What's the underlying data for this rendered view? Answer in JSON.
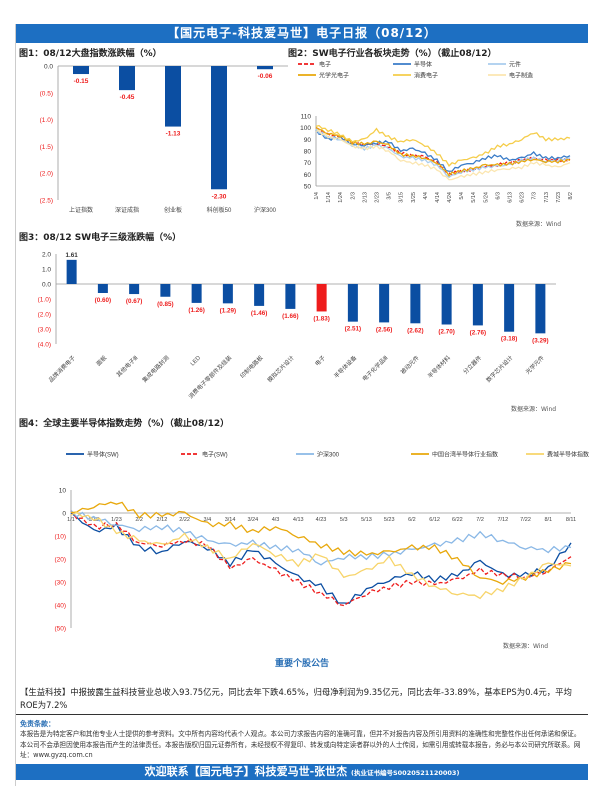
{
  "header": {
    "title": "【国元电子-科技爱马世】电子日报（08/12）"
  },
  "colors": {
    "blue": "#0b4ea2",
    "red": "#ee1c1c",
    "header": "#1d6fc2"
  },
  "source_label": "数据来源：Wind",
  "important_title": "重要个股公告",
  "announcement": "【生益科技】中报披露生益科技营业总收入93.75亿元，同比去年下跌4.65%，归母净利润为9.35亿元，同比去年-33.89%，基本EPS为0.4元，平均ROE为7.2%",
  "disclaimer": {
    "title": "免责条款：",
    "text": "本报告是为特定客户和其他专业人士提供的参考资料。文中所有内容均代表个人观点。本公司力求报告内容的准确可靠，但并不对报告内容及所引用资料的准确性和完整性作出任何承诺和保证。本公司不会承担因使用本报告而产生的法律责任。本报告版权归国元证券所有，未经授权不得复印、转发或向特定读者群以外的人士传阅，如需引用或转载本报告，务必与本公司研究所联系。网址：www.gyzq.com.cn"
  },
  "footer": {
    "text": "欢迎联系【国元电子】科技爱马世-张世杰",
    "license": "(执业证书编号S0020521120003)"
  },
  "chart_data": [
    {
      "type": "bar",
      "title": "图1：08/12大盘指数涨跌幅（%）",
      "categories": [
        "上证指数",
        "深证成指",
        "创业板",
        "科创板50",
        "沪深300"
      ],
      "values": [
        -0.15,
        -0.45,
        -1.13,
        -2.3,
        -0.06
      ],
      "labels": [
        "-0.15",
        "-0.45",
        "-1.13",
        "-2.30",
        "-0.06"
      ],
      "ylim": [
        -2.5,
        0
      ],
      "yticks": [
        "0.0",
        "(0.5)",
        "(1.0)",
        "(1.5)",
        "(2.0)",
        "(2.5)"
      ]
    },
    {
      "type": "line",
      "title": "图2：SW电子行业各板块走势（%）（截止08/12）",
      "x": [
        "1/4",
        "1/14",
        "1/24",
        "2/3",
        "2/13",
        "2/23",
        "3/5",
        "3/15",
        "3/25",
        "4/4",
        "4/14",
        "4/24",
        "5/4",
        "5/14",
        "5/24",
        "6/3",
        "6/13",
        "6/23",
        "7/3",
        "7/13",
        "7/23",
        "8/2"
      ],
      "ylim": [
        50,
        110
      ],
      "yticks": [
        "50",
        "60",
        "70",
        "80",
        "90",
        "100",
        "110"
      ],
      "series": [
        {
          "name": "电子",
          "color": "#ee1c1c",
          "dash": true,
          "values": [
            100,
            94,
            92,
            86,
            86,
            86,
            84,
            78,
            76,
            75,
            70,
            60,
            63,
            64,
            67,
            68,
            70,
            72,
            74,
            72,
            72,
            73
          ]
        },
        {
          "name": "半导体",
          "color": "#3a7cc8",
          "values": [
            97,
            90,
            92,
            86,
            85,
            87,
            88,
            80,
            82,
            78,
            72,
            62,
            68,
            70,
            74,
            76,
            72,
            74,
            78,
            74,
            74,
            76
          ]
        },
        {
          "name": "元件",
          "color": "#a9cdee",
          "values": [
            98,
            92,
            90,
            85,
            82,
            85,
            82,
            75,
            74,
            72,
            68,
            58,
            62,
            64,
            66,
            67,
            68,
            72,
            74,
            71,
            72,
            74
          ]
        },
        {
          "name": "光学光电子",
          "color": "#e8a80c",
          "values": [
            100,
            95,
            93,
            87,
            86,
            88,
            85,
            77,
            76,
            74,
            70,
            60,
            63,
            65,
            68,
            68,
            69,
            71,
            73,
            71,
            71,
            72
          ]
        },
        {
          "name": "消费电子",
          "color": "#f5cd4a",
          "values": [
            102,
            98,
            94,
            88,
            90,
            98,
            92,
            88,
            90,
            85,
            78,
            68,
            72,
            74,
            78,
            84,
            86,
            90,
            96,
            90,
            90,
            91
          ]
        },
        {
          "name": "电子制造",
          "color": "#fbe6b0",
          "values": [
            98,
            92,
            90,
            84,
            82,
            84,
            80,
            72,
            70,
            68,
            64,
            55,
            58,
            60,
            62,
            64,
            65,
            66,
            70,
            68,
            66,
            70
          ]
        }
      ]
    },
    {
      "type": "bar",
      "title": "图3：08/12 SW电子三级涨跌幅（%）",
      "categories": [
        "品牌消费电子",
        "面板",
        "其他电子Ⅲ",
        "集成电路封测",
        "LED",
        "消费电子零部件及组装",
        "印制电路板",
        "模拟芯片设计",
        "电子",
        "半导体设备",
        "电子化学品Ⅲ",
        "被动元件",
        "半导体材料",
        "分立器件",
        "数字芯片设计",
        "光学元件"
      ],
      "values": [
        1.61,
        -0.6,
        -0.67,
        -0.85,
        -1.26,
        -1.29,
        -1.46,
        -1.66,
        -1.83,
        -2.51,
        -2.56,
        -2.62,
        -2.7,
        -2.76,
        -3.18,
        -3.29
      ],
      "labels": [
        "1.61",
        "(0.60)",
        "(0.67)",
        "(0.85)",
        "(1.26)",
        "(1.29)",
        "(1.46)",
        "(1.66)",
        "(1.83)",
        "(2.51)",
        "(2.56)",
        "(2.62)",
        "(2.70)",
        "(2.76)",
        "(3.18)",
        "(3.29)"
      ],
      "highlight": "电子",
      "ylim": [
        -4,
        2
      ],
      "yticks": [
        "(4.0)",
        "(3.0)",
        "(2.0)",
        "(1.0)",
        "0.0",
        "1.0",
        "2.0"
      ]
    },
    {
      "type": "line",
      "title": "图4：全球主要半导体指数走势（%）（截止08/12）",
      "x": [
        "1/1",
        "1/13",
        "1/23",
        "2/2",
        "2/12",
        "2/22",
        "3/4",
        "3/14",
        "3/24",
        "4/3",
        "4/13",
        "4/23",
        "5/3",
        "5/13",
        "5/23",
        "6/2",
        "6/12",
        "6/22",
        "7/2",
        "7/12",
        "7/22",
        "8/1",
        "8/11"
      ],
      "ylim": [
        -50,
        10
      ],
      "yticks": [
        "(50)",
        "(40)",
        "(30)",
        "(20)",
        "(10)",
        "0",
        "10"
      ],
      "series": [
        {
          "name": "半导体(SW)",
          "color": "#0b4ea2",
          "values": [
            0,
            -8,
            -6,
            -15,
            -17,
            -12,
            -15,
            -22,
            -16,
            -22,
            -28,
            -32,
            -40,
            -33,
            -29,
            -26,
            -29,
            -27,
            -21,
            -27,
            -27,
            -24,
            -13
          ]
        },
        {
          "name": "电子(SW)",
          "color": "#ee1c1c",
          "dash": true,
          "values": [
            0,
            -6,
            -5,
            -13,
            -14,
            -12,
            -14,
            -24,
            -20,
            -25,
            -30,
            -35,
            -40,
            -35,
            -32,
            -30,
            -31,
            -29,
            -25,
            -27,
            -28,
            -25,
            -19
          ]
        },
        {
          "name": "沪深300",
          "color": "#8ab8e6",
          "values": [
            0,
            -2,
            -5,
            -7,
            -6,
            -8,
            -12,
            -14,
            -13,
            -15,
            -16,
            -22,
            -19,
            -19,
            -18,
            -16,
            -14,
            -12,
            -9,
            -12,
            -15,
            -16,
            -15
          ]
        },
        {
          "name": "中国台湾半导体行业指数",
          "color": "#e8a80c",
          "values": [
            0,
            3,
            5,
            -1,
            -1,
            0,
            -5,
            -5,
            -8,
            -6,
            -10,
            -14,
            -17,
            -18,
            -17,
            -15,
            -15,
            -20,
            -28,
            -30,
            -28,
            -25,
            -22
          ]
        },
        {
          "name": "费城半导体指数",
          "color": "#f7d46a",
          "values": [
            0,
            -2,
            -8,
            -12,
            -14,
            -10,
            -15,
            -20,
            -13,
            -18,
            -22,
            -18,
            -28,
            -25,
            -20,
            -27,
            -32,
            -35,
            -36,
            -33,
            -28,
            -22,
            -23
          ]
        }
      ]
    }
  ]
}
